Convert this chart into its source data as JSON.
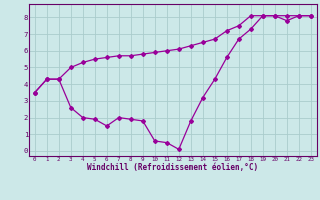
{
  "xlabel": "Windchill (Refroidissement éolien,°C)",
  "bg_color": "#cce8e8",
  "grid_color": "#aacccc",
  "line_color": "#990099",
  "spine_color": "#660066",
  "tick_color": "#660066",
  "xlim": [
    -0.5,
    23.5
  ],
  "ylim": [
    -0.3,
    8.8
  ],
  "xticks": [
    0,
    1,
    2,
    3,
    4,
    5,
    6,
    7,
    8,
    9,
    10,
    11,
    12,
    13,
    14,
    15,
    16,
    17,
    18,
    19,
    20,
    21,
    22,
    23
  ],
  "yticks": [
    0,
    1,
    2,
    3,
    4,
    5,
    6,
    7,
    8
  ],
  "series1_x": [
    0,
    1,
    2,
    3,
    4,
    5,
    6,
    7,
    8,
    9,
    10,
    11,
    12,
    13,
    14,
    15,
    16,
    17,
    18,
    19,
    20,
    21,
    22,
    23
  ],
  "series1_y": [
    3.5,
    4.3,
    4.3,
    2.6,
    2.0,
    1.9,
    1.5,
    2.0,
    1.9,
    1.8,
    0.6,
    0.5,
    0.1,
    1.8,
    3.2,
    4.3,
    5.6,
    6.7,
    7.3,
    8.1,
    8.1,
    7.8,
    8.1,
    8.1
  ],
  "series2_x": [
    0,
    1,
    2,
    3,
    4,
    5,
    6,
    7,
    8,
    9,
    10,
    11,
    12,
    13,
    14,
    15,
    16,
    17,
    18,
    19,
    20,
    21,
    22,
    23
  ],
  "series2_y": [
    3.5,
    4.3,
    4.3,
    5.0,
    5.3,
    5.5,
    5.6,
    5.7,
    5.7,
    5.8,
    5.9,
    6.0,
    6.1,
    6.3,
    6.5,
    6.7,
    7.2,
    7.5,
    8.1,
    8.1,
    8.1,
    8.1,
    8.1,
    8.1
  ],
  "xlabel_fontsize": 5.5,
  "xtick_fontsize": 4.2,
  "ytick_fontsize": 5.2,
  "marker_size": 2.0,
  "line_width": 0.9
}
